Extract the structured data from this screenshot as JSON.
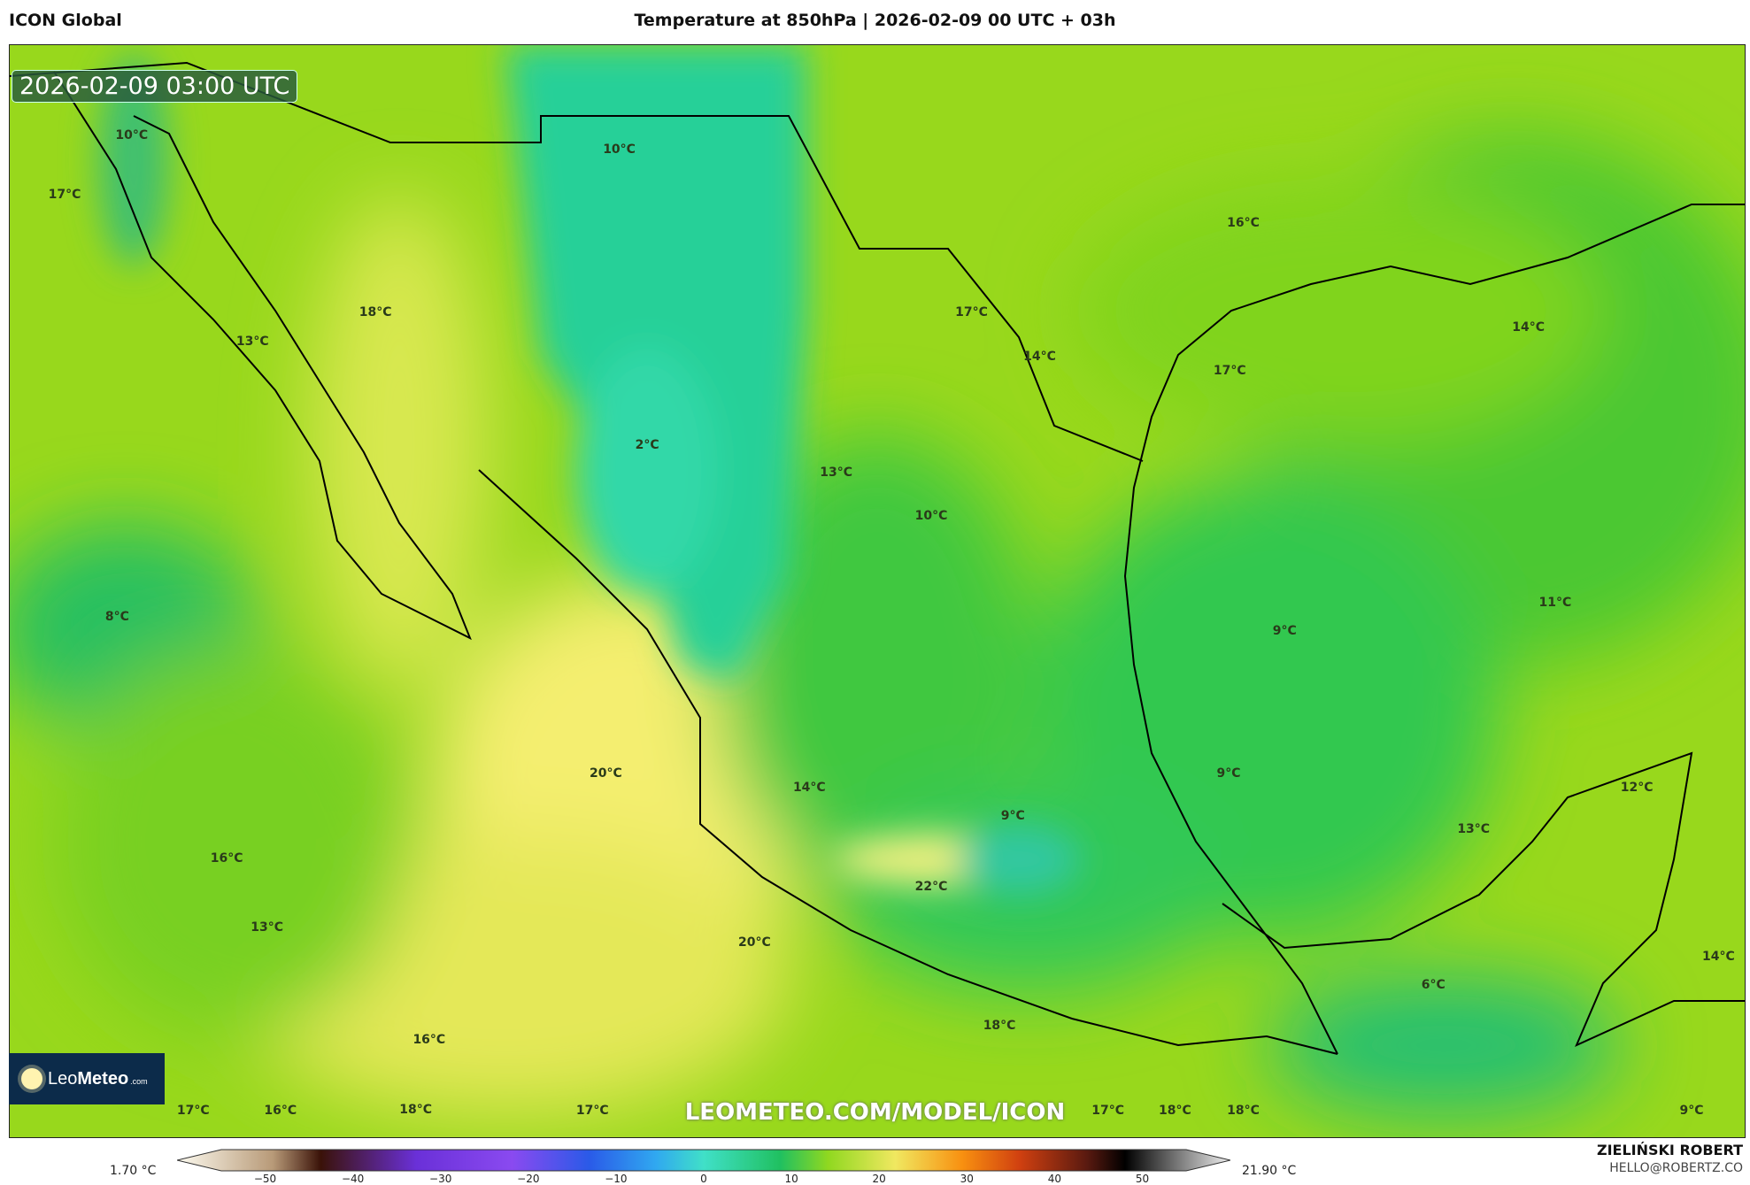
{
  "header": {
    "model": "ICON Global",
    "title": "Temperature at 850hPa | 2026-02-09 00 UTC + 03h"
  },
  "map": {
    "valid_time": "2026-02-09 03:00 UTC",
    "watermark": "LEOMETEO.COM/MODEL/ICON",
    "logo": {
      "name_light": "Leo",
      "name_bold": "Meteo",
      "suffix": ".com"
    },
    "labels": [
      "10°C",
      "17°C",
      "10°C",
      "18°C",
      "13°C",
      "16°C",
      "17°C",
      "14°C",
      "14°C",
      "17°C",
      "2°C",
      "13°C",
      "10°C",
      "8°C",
      "9°C",
      "11°C",
      "20°C",
      "9°C",
      "14°C",
      "9°C",
      "12°C",
      "13°C",
      "16°C",
      "22°C",
      "13°C",
      "20°C",
      "6°C",
      "14°C",
      "18°C",
      "16°C",
      "17°C",
      "16°C",
      "18°C",
      "17°C",
      "17°C",
      "18°C",
      "18°C",
      "9°C"
    ]
  },
  "colorbar": {
    "min_label": "1.70 °C",
    "max_label": "21.90 °C",
    "ticks": [
      "−50",
      "−40",
      "−30",
      "−20",
      "−10",
      "0",
      "10",
      "20",
      "30",
      "40",
      "50"
    ],
    "stops": [
      [
        "-55",
        "#fdfbf0"
      ],
      [
        "-45",
        "#b89a78"
      ],
      [
        "-40",
        "#3a1208"
      ],
      [
        "-30",
        "#6a30d8"
      ],
      [
        "-20",
        "#8a4af0"
      ],
      [
        "-12",
        "#2a5ae8"
      ],
      [
        "-5",
        "#30a8f0"
      ],
      [
        "0",
        "#40e0c8"
      ],
      [
        "8",
        "#20c060"
      ],
      [
        "13",
        "#90d820"
      ],
      [
        "20",
        "#f0e860"
      ],
      [
        "27",
        "#f89010"
      ],
      [
        "33",
        "#d04010"
      ],
      [
        "40",
        "#5a1a10"
      ],
      [
        "44",
        "#000000"
      ],
      [
        "55",
        "#f0f0f0"
      ]
    ]
  },
  "author": {
    "name": "ZIELIŃSKI ROBERT",
    "email": "HELLO@ROBERTZ.CO"
  }
}
